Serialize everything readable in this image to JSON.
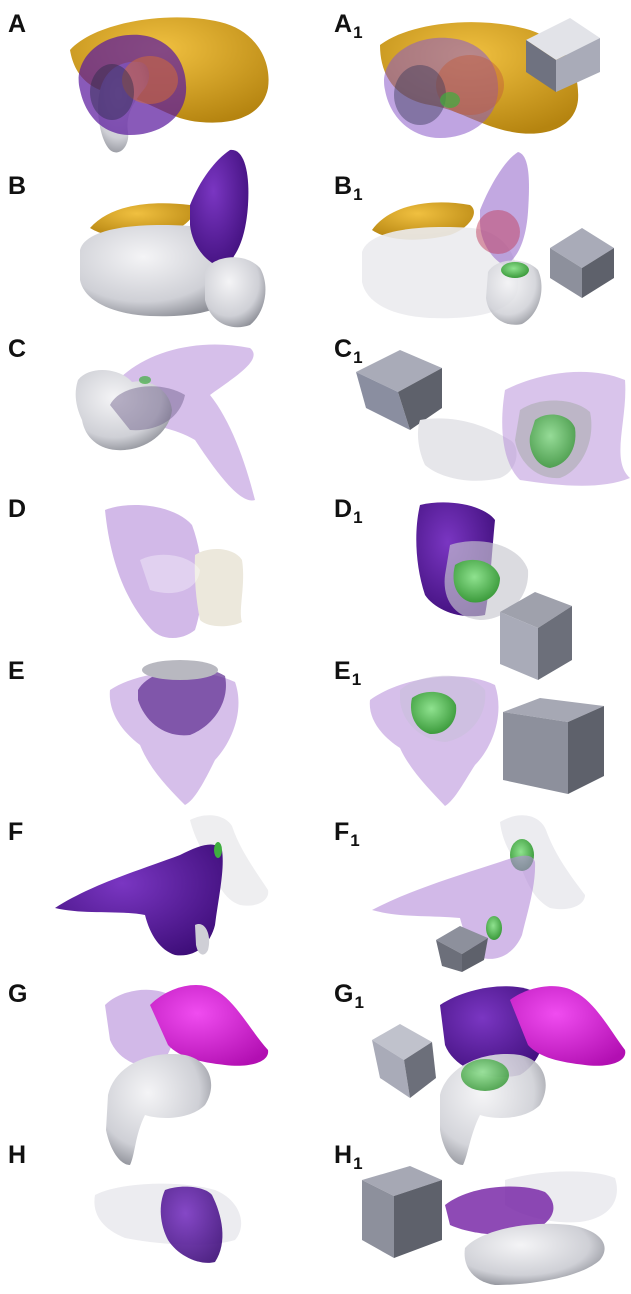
{
  "figure": {
    "panels": [
      {
        "id": "A",
        "label": "A",
        "sub": ""
      },
      {
        "id": "A1",
        "label": "A",
        "sub": "1"
      },
      {
        "id": "B",
        "label": "B",
        "sub": ""
      },
      {
        "id": "B1",
        "label": "B",
        "sub": "1"
      },
      {
        "id": "C",
        "label": "C",
        "sub": ""
      },
      {
        "id": "C1",
        "label": "C",
        "sub": "1"
      },
      {
        "id": "D",
        "label": "D",
        "sub": ""
      },
      {
        "id": "D1",
        "label": "D",
        "sub": "1"
      },
      {
        "id": "E",
        "label": "E",
        "sub": ""
      },
      {
        "id": "E1",
        "label": "E",
        "sub": "1"
      },
      {
        "id": "F",
        "label": "F",
        "sub": ""
      },
      {
        "id": "F1",
        "label": "F",
        "sub": "1"
      },
      {
        "id": "G",
        "label": "G",
        "sub": ""
      },
      {
        "id": "G1",
        "label": "G",
        "sub": "1"
      },
      {
        "id": "H",
        "label": "H",
        "sub": ""
      },
      {
        "id": "H1",
        "label": "H",
        "sub": "1"
      }
    ],
    "colors": {
      "gold": "#d4a017",
      "purple": "#5b1a9e",
      "lavender": "#b48ad8",
      "magenta": "#d21fd2",
      "grey_tissue": "#d8d8de",
      "green": "#3fae3f",
      "cube_dark": "#5e616b",
      "cube_light": "#a9abb8"
    }
  }
}
